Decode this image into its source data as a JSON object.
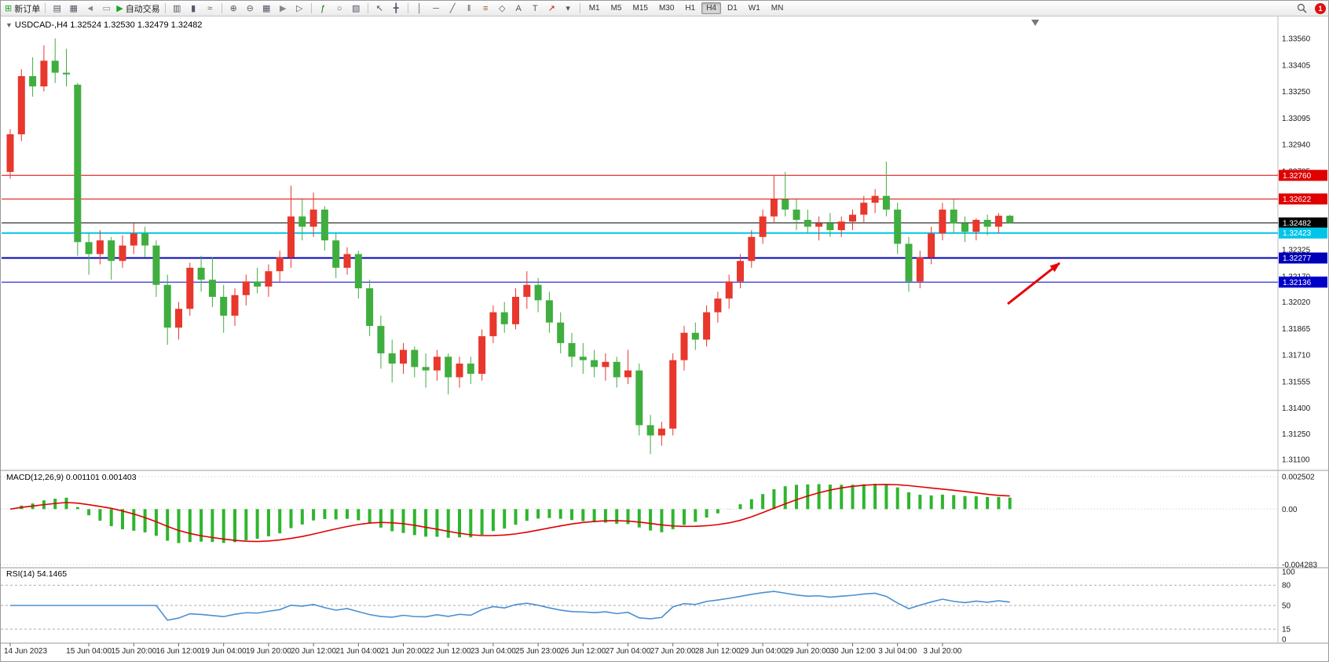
{
  "toolbar": {
    "groups": [
      {
        "items": [
          {
            "name": "new-order-button",
            "glyph": "⊞",
            "color": "#1fa31f",
            "label": "新订单"
          }
        ]
      },
      {
        "items": [
          {
            "name": "market-watch-icon",
            "glyph": "▤"
          },
          {
            "name": "data-window-icon",
            "glyph": "▦"
          },
          {
            "name": "sound-icon",
            "glyph": "◄",
            "color": "#888888"
          },
          {
            "name": "chat-icon",
            "glyph": "▭",
            "color": "#888888"
          },
          {
            "name": "autotrade-button",
            "glyph": "▶",
            "color": "#1fa31f",
            "label": "自动交易"
          }
        ]
      },
      {
        "items": [
          {
            "name": "bar-chart-icon",
            "glyph": "▥"
          },
          {
            "name": "candlestick-icon",
            "glyph": "▮"
          },
          {
            "name": "line-chart-icon",
            "glyph": "≈"
          }
        ]
      },
      {
        "items": [
          {
            "name": "zoom-in-icon",
            "glyph": "⊕"
          },
          {
            "name": "zoom-out-icon",
            "glyph": "⊖"
          },
          {
            "name": "tile-windows-icon",
            "glyph": "▦"
          },
          {
            "name": "auto-scroll-icon",
            "glyph": "▶",
            "color": "#888888"
          },
          {
            "name": "chart-shift-icon",
            "glyph": "▷"
          }
        ]
      },
      {
        "items": [
          {
            "name": "indicators-icon",
            "glyph": "ƒ",
            "color": "#0a7a0a"
          },
          {
            "name": "periods-icon",
            "glyph": "○"
          },
          {
            "name": "templates-icon",
            "glyph": "▧"
          }
        ]
      },
      {
        "items": [
          {
            "name": "cursor-icon",
            "glyph": "↖"
          },
          {
            "name": "crosshair-icon",
            "glyph": "╋"
          }
        ]
      },
      {
        "items": [
          {
            "name": "vertical-line-icon",
            "glyph": "│"
          },
          {
            "name": "horizontal-line-icon",
            "glyph": "─"
          },
          {
            "name": "trendline-icon",
            "glyph": "╱"
          },
          {
            "name": "channel-icon",
            "glyph": "‖"
          },
          {
            "name": "fibonacci-icon",
            "glyph": "≡",
            "color": "#a05a2c"
          },
          {
            "name": "shapes-icon",
            "glyph": "◇"
          },
          {
            "name": "text-icon",
            "glyph": "A"
          },
          {
            "name": "label-icon",
            "glyph": "T"
          },
          {
            "name": "arrows-icon",
            "glyph": "↗",
            "color": "#c02020"
          },
          {
            "name": "objects-dropdown-icon",
            "glyph": "▾"
          }
        ]
      }
    ],
    "timeframes": [
      "M1",
      "M5",
      "M15",
      "M30",
      "H1",
      "H4",
      "D1",
      "W1",
      "MN"
    ],
    "active_timeframe": "H4",
    "notification_count": "1"
  },
  "chart": {
    "title": "USDCAD-,H4 1.32524 1.32530 1.32479 1.32482",
    "symbol": "USDCAD-",
    "period": "H4",
    "dropdown_glyph": "▼",
    "ohlc": {
      "open": "1.32524",
      "high": "1.32530",
      "low": "1.32479",
      "close": "1.32482"
    },
    "hlines": [
      {
        "name": "resistance-line-upper",
        "price": 1.3276,
        "color": "#e00000",
        "width": 1
      },
      {
        "name": "resistance-line-lower",
        "price": 1.32622,
        "color": "#e00000",
        "width": 1
      },
      {
        "name": "current-price-line",
        "price": 1.32482,
        "color": "#000000",
        "width": 1
      },
      {
        "name": "support-line-cyan",
        "price": 1.32423,
        "color": "#00c4e8",
        "width": 2
      },
      {
        "name": "support-line-blue-upper",
        "price": 1.32277,
        "color": "#0000b8",
        "width": 2
      },
      {
        "name": "support-line-blue-lower",
        "price": 1.32136,
        "color": "#0000c8",
        "width": 1
      }
    ],
    "arrow_annotation": {
      "color": "#e60000"
    }
  },
  "price_axis": {
    "labels": [
      "1.33560",
      "1.33405",
      "1.33250",
      "1.33095",
      "1.32940",
      "1.32785",
      "1.32635",
      "1.32480",
      "1.32325",
      "1.32170",
      "1.32020",
      "1.31865",
      "1.31710",
      "1.31555",
      "1.31400",
      "1.31250",
      "1.31100"
    ]
  },
  "time_axis": {
    "labels": [
      {
        "i": 0,
        "t": "14 Jun 2023"
      },
      {
        "i": 7,
        "t": "15 Jun 04:00"
      },
      {
        "i": 11,
        "t": "15 Jun 20:00"
      },
      {
        "i": 15,
        "t": "16 Jun 12:00"
      },
      {
        "i": 19,
        "t": "19 Jun 04:00"
      },
      {
        "i": 23,
        "t": "19 Jun 20:00"
      },
      {
        "i": 27,
        "t": "20 Jun 12:00"
      },
      {
        "i": 31,
        "t": "21 Jun 04:00"
      },
      {
        "i": 35,
        "t": "21 Jun 20:00"
      },
      {
        "i": 39,
        "t": "22 Jun 12:00"
      },
      {
        "i": 43,
        "t": "23 Jun 04:00"
      },
      {
        "i": 47,
        "t": "25 Jun 23:00"
      },
      {
        "i": 51,
        "t": "26 Jun 12:00"
      },
      {
        "i": 55,
        "t": "27 Jun 04:00"
      },
      {
        "i": 59,
        "t": "27 Jun 20:00"
      },
      {
        "i": 63,
        "t": "28 Jun 12:00"
      },
      {
        "i": 67,
        "t": "29 Jun 04:00"
      },
      {
        "i": 71,
        "t": "29 Jun 20:00"
      },
      {
        "i": 75,
        "t": "30 Jun 12:00"
      },
      {
        "i": 79,
        "t": "3 Jul 04:00"
      },
      {
        "i": 83,
        "t": "3 Jul 20:00"
      }
    ]
  },
  "indicators": {
    "macd": {
      "label": "MACD(12,26,9) 0.001101 0.001403",
      "params": [
        12,
        26,
        9
      ],
      "values": [
        "0.001101",
        "0.001403"
      ],
      "axis_labels": [
        "0.002502",
        "0.00",
        "-0.004283"
      ],
      "histogram_color": "#2eb52e",
      "signal_color": "#e00000"
    },
    "rsi": {
      "label": "RSI(14) 54.1465",
      "period": 14,
      "value": "54.1465",
      "axis_labels": [
        "100",
        "80",
        "50",
        "15",
        "0"
      ],
      "levels": [
        80,
        50,
        15
      ],
      "line_color": "#4a90d0"
    }
  },
  "chart_data": {
    "type": "candlestick",
    "symbol": "USDCAD",
    "timeframe": "H4",
    "bull_color": "#e8372c",
    "bear_color": "#3fae3f",
    "price_range": [
      1.311,
      1.3356
    ],
    "candles": [
      [
        1.3278,
        1.3303,
        1.3274,
        1.33
      ],
      [
        1.33,
        1.3338,
        1.3296,
        1.3334
      ],
      [
        1.3334,
        1.3345,
        1.3322,
        1.3328
      ],
      [
        1.3328,
        1.3352,
        1.3325,
        1.3343
      ],
      [
        1.3343,
        1.3356,
        1.333,
        1.3336
      ],
      [
        1.3336,
        1.335,
        1.3328,
        1.3335
      ],
      [
        1.3329,
        1.333,
        1.3229,
        1.3237
      ],
      [
        1.3237,
        1.3242,
        1.3218,
        1.323
      ],
      [
        1.323,
        1.3244,
        1.3224,
        1.3238
      ],
      [
        1.3238,
        1.324,
        1.3215,
        1.3226
      ],
      [
        1.3226,
        1.3241,
        1.3222,
        1.3235
      ],
      [
        1.3235,
        1.3248,
        1.323,
        1.3242
      ],
      [
        1.3242,
        1.3246,
        1.3228,
        1.3235
      ],
      [
        1.3235,
        1.3238,
        1.3205,
        1.3212
      ],
      [
        1.3212,
        1.3218,
        1.3177,
        1.3187
      ],
      [
        1.3187,
        1.3202,
        1.318,
        1.3198
      ],
      [
        1.3198,
        1.3225,
        1.3194,
        1.3222
      ],
      [
        1.3222,
        1.3229,
        1.3208,
        1.3215
      ],
      [
        1.3215,
        1.3228,
        1.3199,
        1.3205
      ],
      [
        1.3205,
        1.3212,
        1.3184,
        1.3194
      ],
      [
        1.3194,
        1.321,
        1.3188,
        1.3206
      ],
      [
        1.3206,
        1.3218,
        1.32,
        1.3214
      ],
      [
        1.3214,
        1.3222,
        1.3207,
        1.3211
      ],
      [
        1.3211,
        1.3224,
        1.3205,
        1.322
      ],
      [
        1.322,
        1.3232,
        1.3214,
        1.3228
      ],
      [
        1.3228,
        1.327,
        1.3222,
        1.3252
      ],
      [
        1.3252,
        1.3262,
        1.3238,
        1.3246
      ],
      [
        1.3246,
        1.3266,
        1.324,
        1.3256
      ],
      [
        1.3256,
        1.3258,
        1.3232,
        1.3238
      ],
      [
        1.3238,
        1.3242,
        1.3216,
        1.3222
      ],
      [
        1.3222,
        1.3234,
        1.3218,
        1.323
      ],
      [
        1.323,
        1.3232,
        1.3204,
        1.321
      ],
      [
        1.321,
        1.3215,
        1.3182,
        1.3188
      ],
      [
        1.3188,
        1.3194,
        1.3163,
        1.3172
      ],
      [
        1.3172,
        1.318,
        1.3155,
        1.3166
      ],
      [
        1.3166,
        1.3178,
        1.316,
        1.3174
      ],
      [
        1.3174,
        1.3176,
        1.3158,
        1.3164
      ],
      [
        1.3164,
        1.3172,
        1.3152,
        1.3162
      ],
      [
        1.3162,
        1.3174,
        1.3156,
        1.317
      ],
      [
        1.317,
        1.3172,
        1.3148,
        1.3158
      ],
      [
        1.3158,
        1.317,
        1.3152,
        1.3166
      ],
      [
        1.3166,
        1.317,
        1.3154,
        1.316
      ],
      [
        1.316,
        1.3186,
        1.3156,
        1.3182
      ],
      [
        1.3182,
        1.32,
        1.3178,
        1.3196
      ],
      [
        1.3196,
        1.3202,
        1.3184,
        1.3189
      ],
      [
        1.3189,
        1.321,
        1.3186,
        1.3205
      ],
      [
        1.3205,
        1.322,
        1.3198,
        1.3212
      ],
      [
        1.3212,
        1.3216,
        1.3196,
        1.3203
      ],
      [
        1.3203,
        1.3208,
        1.3184,
        1.319
      ],
      [
        1.319,
        1.3196,
        1.3172,
        1.3178
      ],
      [
        1.3178,
        1.3184,
        1.3164,
        1.317
      ],
      [
        1.317,
        1.3178,
        1.316,
        1.3168
      ],
      [
        1.3168,
        1.3174,
        1.3158,
        1.3164
      ],
      [
        1.3164,
        1.3172,
        1.3156,
        1.3167
      ],
      [
        1.3167,
        1.317,
        1.3152,
        1.3158
      ],
      [
        1.3158,
        1.3174,
        1.3154,
        1.3162
      ],
      [
        1.3162,
        1.3166,
        1.3124,
        1.313
      ],
      [
        1.313,
        1.3136,
        1.3113,
        1.3124
      ],
      [
        1.3124,
        1.3132,
        1.3118,
        1.3128
      ],
      [
        1.3128,
        1.3172,
        1.3124,
        1.3168
      ],
      [
        1.3168,
        1.3188,
        1.3162,
        1.3184
      ],
      [
        1.3184,
        1.319,
        1.3174,
        1.318
      ],
      [
        1.318,
        1.32,
        1.3176,
        1.3196
      ],
      [
        1.3196,
        1.3208,
        1.319,
        1.3204
      ],
      [
        1.3204,
        1.3218,
        1.3198,
        1.3214
      ],
      [
        1.3214,
        1.323,
        1.321,
        1.3226
      ],
      [
        1.3226,
        1.3244,
        1.3222,
        1.324
      ],
      [
        1.324,
        1.3256,
        1.3236,
        1.3252
      ],
      [
        1.3252,
        1.3276,
        1.3248,
        1.3262
      ],
      [
        1.3262,
        1.3278,
        1.3252,
        1.3256
      ],
      [
        1.3256,
        1.3262,
        1.3244,
        1.325
      ],
      [
        1.325,
        1.3256,
        1.3242,
        1.3246
      ],
      [
        1.3246,
        1.3252,
        1.3238,
        1.3248
      ],
      [
        1.3248,
        1.3254,
        1.324,
        1.3244
      ],
      [
        1.3244,
        1.3252,
        1.324,
        1.3249
      ],
      [
        1.3249,
        1.3256,
        1.3244,
        1.3253
      ],
      [
        1.3253,
        1.3264,
        1.3248,
        1.326
      ],
      [
        1.326,
        1.3268,
        1.3254,
        1.3264
      ],
      [
        1.3264,
        1.3284,
        1.3252,
        1.3256
      ],
      [
        1.3256,
        1.326,
        1.323,
        1.3236
      ],
      [
        1.3236,
        1.324,
        1.3208,
        1.3214
      ],
      [
        1.3214,
        1.3232,
        1.321,
        1.3228
      ],
      [
        1.3228,
        1.3246,
        1.3224,
        1.3242
      ],
      [
        1.3242,
        1.326,
        1.3238,
        1.3256
      ],
      [
        1.3256,
        1.3262,
        1.3242,
        1.3248
      ],
      [
        1.3248,
        1.3252,
        1.3237,
        1.3243
      ],
      [
        1.3243,
        1.3251,
        1.3238,
        1.325
      ],
      [
        1.325,
        1.3253,
        1.3241,
        1.3246
      ],
      [
        1.3246,
        1.3254,
        1.3242,
        1.32524
      ],
      [
        1.32524,
        1.3253,
        1.32479,
        1.32482
      ]
    ]
  }
}
